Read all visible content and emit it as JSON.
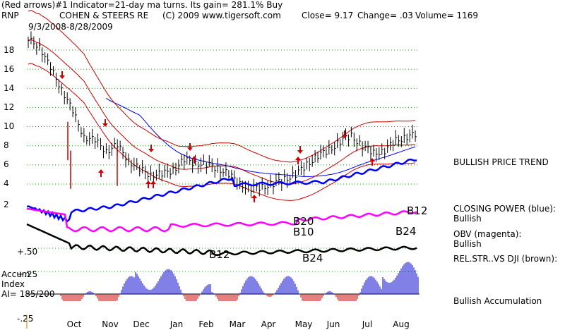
{
  "header": {
    "line1": "(Red arrows)#1 Indicator=21-day ma turns. Its gain= 281.1% Buy",
    "ticker": "RNP",
    "company": "COHEN & STEERS RE",
    "copyright": "(C) 2009 www.tigersoft.com",
    "close": "Close=  9.17",
    "change": "Change= .03",
    "volume": "Volume= 1169",
    "date_range": "9/3/2008-8/28/2009"
  },
  "side_labels": {
    "trend": "BULLISH PRICE TREND",
    "closing_power_line1": "CLOSING POWER (blue):",
    "closing_power_line2": "Bullish",
    "obv_line1": "OBV (magenta):",
    "obv_line2": "Bullish",
    "relstr": "REL.STR..VS DJI (brown):",
    "accum": "Bullish Accumulation"
  },
  "accum_index": {
    "line1": "Accum",
    "line2": "Index",
    "line3": "AI= 185/200"
  },
  "colors": {
    "price": "#000000",
    "band": "#cc0000",
    "ma": "#0000ff",
    "closing_power": "#0000ff",
    "obv": "#ff00ff",
    "relstr": "#000000",
    "accum": "#0000cc",
    "arrow": "#cc0000",
    "grid": "#00aa00"
  },
  "chart_data": {
    "type": "line",
    "x": [
      "Oct",
      "Nov",
      "Dec",
      "Jan",
      "Feb",
      "Mar",
      "Apr",
      "May",
      "Jun",
      "Jul",
      "Aug"
    ],
    "price_axis_ticks": [
      "18",
      "16",
      "14",
      "12",
      "10",
      "8",
      "6",
      "4",
      "2"
    ],
    "accum_axis_ticks": [
      "+.50",
      "+.25",
      "-.25"
    ],
    "price_close": [
      19,
      18.5,
      16,
      14,
      11.5,
      9,
      8.5,
      7.5,
      8,
      6.5,
      5.5,
      5,
      5,
      5.5,
      6.5,
      6.2,
      6,
      5.7,
      5,
      4,
      3.5,
      3.7,
      4,
      4.5,
      5,
      6,
      7,
      7.5,
      8.5,
      9,
      8,
      7.2,
      7.5,
      8.5,
      9,
      9.17
    ],
    "signals": [
      {
        "label": "B12",
        "month": "Feb"
      },
      {
        "label": "B20",
        "month": "May"
      },
      {
        "label": "B10",
        "month": "May"
      },
      {
        "label": "B24",
        "month": "May"
      },
      {
        "label": "B12",
        "month": "Aug"
      },
      {
        "label": "B24",
        "month": "Aug"
      }
    ]
  }
}
